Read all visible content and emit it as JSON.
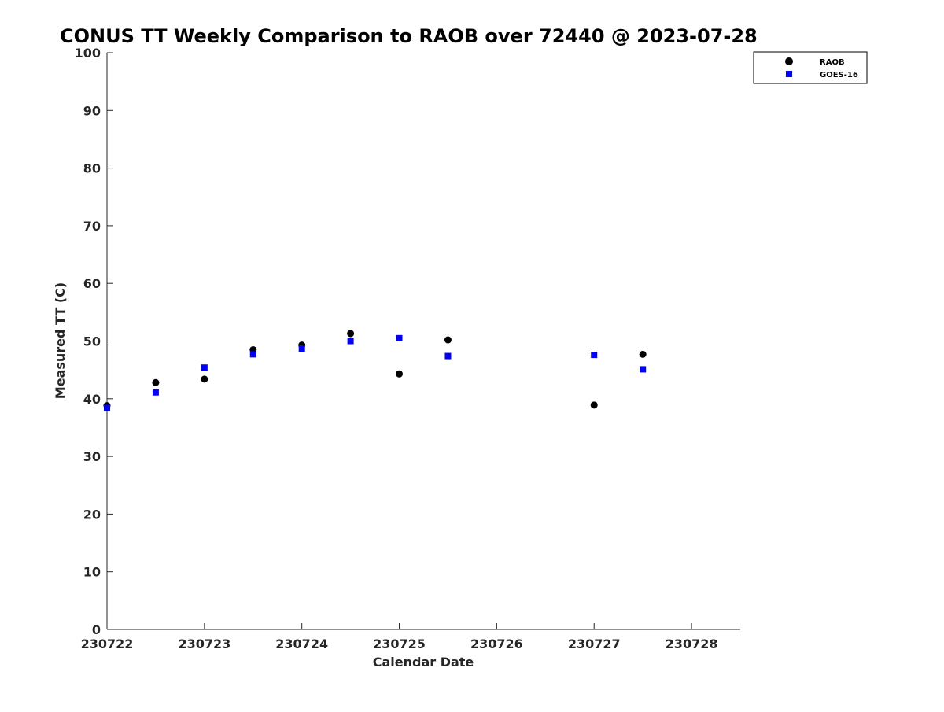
{
  "chart_data": {
    "type": "scatter",
    "title": "CONUS TT Weekly Comparison to RAOB over 72440 @ 2023-07-28",
    "xlabel": "Calendar Date",
    "ylabel": "Measured TT (C)",
    "x_tick_labels": [
      "230722",
      "230723",
      "230724",
      "230725",
      "230726",
      "230727",
      "230728"
    ],
    "y_tick_labels": [
      "0",
      "10",
      "20",
      "30",
      "40",
      "50",
      "60",
      "70",
      "80",
      "90",
      "100"
    ],
    "xlim": [
      "230722",
      "230728.5"
    ],
    "ylim": [
      0,
      100
    ],
    "grid": false,
    "legend_position": "top-right",
    "series": [
      {
        "name": "RAOB",
        "marker": "circle",
        "color": "#000000",
        "x": [
          "230722",
          "230722.5",
          "230723",
          "230723.5",
          "230724",
          "230724.5",
          "230725",
          "230725.5",
          "230727",
          "230727.5"
        ],
        "y": [
          38.8,
          42.8,
          43.4,
          48.5,
          49.3,
          51.3,
          44.3,
          50.2,
          38.9,
          47.7
        ]
      },
      {
        "name": "GOES-16",
        "marker": "square",
        "color": "#0000ff",
        "x": [
          "230722",
          "230722.5",
          "230723",
          "230723.5",
          "230724",
          "230724.5",
          "230725",
          "230725.5",
          "230727",
          "230727.5"
        ],
        "y": [
          38.4,
          41.1,
          45.4,
          47.7,
          48.7,
          50.0,
          50.5,
          47.4,
          47.6,
          45.1
        ]
      }
    ]
  }
}
